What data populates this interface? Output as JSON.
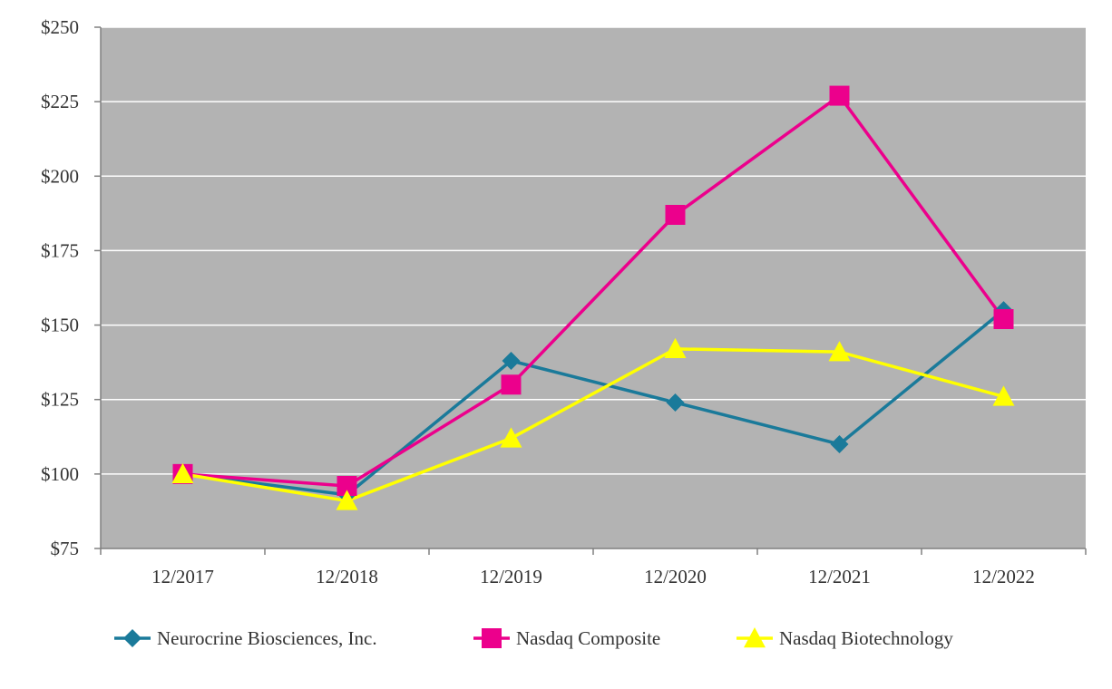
{
  "chart_data": {
    "type": "line",
    "categories": [
      "12/2017",
      "12/2018",
      "12/2019",
      "12/2020",
      "12/2021",
      "12/2022"
    ],
    "ylim": [
      75,
      250
    ],
    "yticks": [
      75,
      100,
      125,
      150,
      175,
      200,
      225,
      250
    ],
    "ytick_labels": [
      "$75",
      "$100",
      "$125",
      "$150",
      "$175",
      "$200",
      "$225",
      "$250"
    ],
    "grid": true,
    "legend_position": "bottom",
    "plot_background": "#b3b3b3",
    "series": [
      {
        "name": "Neurocrine Biosciences, Inc.",
        "values": [
          100,
          93,
          138,
          124,
          110,
          155
        ],
        "color": "#1a7a9a",
        "marker": "diamond"
      },
      {
        "name": "Nasdaq Composite",
        "values": [
          100,
          96,
          130,
          187,
          227,
          152
        ],
        "color": "#ec008c",
        "marker": "square"
      },
      {
        "name": "Nasdaq Biotechnology",
        "values": [
          100,
          91,
          112,
          142,
          141,
          126
        ],
        "color": "#ffff00",
        "marker": "triangle"
      }
    ]
  }
}
